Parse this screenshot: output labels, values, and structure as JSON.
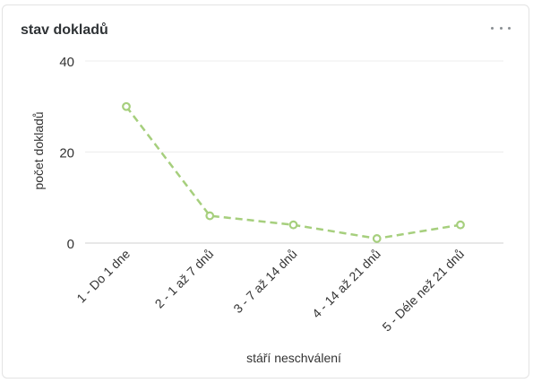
{
  "card": {
    "title": "stav dokladů",
    "menu_icon": "more-horizontal-icon"
  },
  "chart_data": {
    "type": "line",
    "categories": [
      "1 - Do 1 dne",
      "2 - 1 až 7 dnů",
      "3 - 7 až 14 dnů",
      "4 - 14 až 21 dnů",
      "5 - Déle než 21 dnů"
    ],
    "series": [
      {
        "values": [
          30,
          6,
          4,
          1,
          4
        ],
        "color": "#a6cf7d",
        "style": "dashed",
        "marker": "hollow-circle"
      }
    ],
    "xlabel": "stáří neschválení",
    "ylabel": "počet dokladů",
    "ylim": [
      0,
      40
    ],
    "yticks": [
      0,
      20,
      40
    ],
    "grid": true
  }
}
